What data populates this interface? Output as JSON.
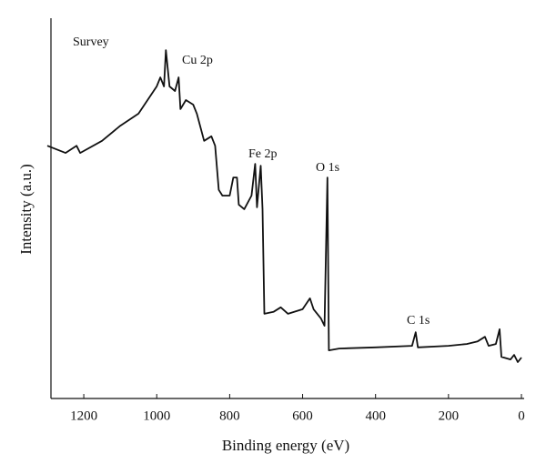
{
  "chart_data": {
    "type": "line",
    "x_label": "Binding energy (eV)",
    "y_label": "Intensity (a.u.)",
    "annotations": [
      "Survey",
      "Cu 2p",
      "Fe 2p",
      "O 1s",
      "C 1s"
    ],
    "xlim": [
      1300,
      0
    ],
    "xticks": [
      1200,
      1000,
      800,
      600,
      400,
      200,
      0
    ],
    "ylim": [
      0,
      100
    ],
    "x": [
      1300,
      1250,
      1220,
      1210,
      1150,
      1100,
      1050,
      1000,
      990,
      980,
      975,
      965,
      950,
      940,
      935,
      920,
      900,
      890,
      870,
      850,
      840,
      830,
      820,
      800,
      790,
      780,
      775,
      760,
      740,
      730,
      725,
      715,
      710,
      705,
      680,
      660,
      640,
      600,
      580,
      570,
      560,
      550,
      540,
      532,
      528,
      500,
      400,
      300,
      290,
      284,
      200,
      150,
      120,
      100,
      90,
      70,
      60,
      55,
      30,
      20,
      10,
      0
    ],
    "series": [
      {
        "name": "Survey",
        "color": "#111111",
        "values": [
          66.7,
          64.8,
          66.7,
          64.8,
          68.0,
          72.0,
          75.2,
          82.4,
          84.8,
          82.4,
          92.0,
          82.4,
          81.2,
          84.8,
          76.4,
          78.8,
          77.6,
          75.2,
          68.0,
          69.2,
          66.7,
          55.0,
          53.5,
          53.5,
          58.3,
          58.3,
          51.1,
          49.9,
          53.5,
          61.9,
          50.4,
          61.4,
          49.9,
          22.2,
          22.7,
          23.9,
          22.2,
          23.4,
          26.3,
          23.4,
          22.2,
          21.0,
          19.0,
          58.3,
          12.5,
          13.0,
          13.3,
          13.7,
          17.3,
          13.3,
          13.7,
          14.2,
          14.9,
          16.1,
          13.7,
          14.2,
          18.1,
          10.8,
          10.1,
          11.3,
          9.4,
          10.6
        ]
      }
    ]
  }
}
